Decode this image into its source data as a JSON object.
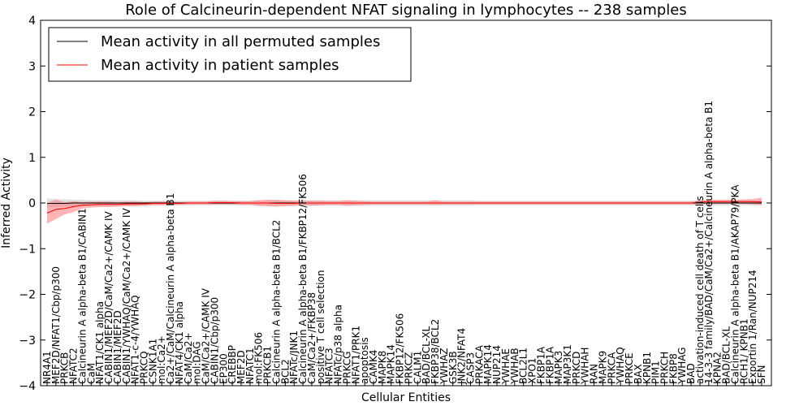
{
  "chart_data": {
    "type": "line",
    "title": "Role of Calcineurin-dependent NFAT signaling in lymphocytes -- 238 samples",
    "xlabel": "Cellular Entities",
    "ylabel": "Inferred Activity",
    "ylim": [
      -4,
      4
    ],
    "yticks": [
      "4",
      "3",
      "2",
      "1",
      "0",
      "−1",
      "−2",
      "−3",
      "−4"
    ],
    "legend": {
      "placement": "top-left",
      "entries": [
        {
          "label": "Mean activity in all permuted samples",
          "color": "#000000"
        },
        {
          "label": "Mean activity in patient samples",
          "color": "#ff0000"
        }
      ]
    },
    "categories": [
      "NR4A1",
      "MEF2D/NFAT1/Cbp/p300",
      "PRKCB",
      "NFATC2",
      "Calcineurin A alpha-beta B1/CABIN1",
      "CaM",
      "NFAT1/CK1 alpha",
      "CABIN1/MEF2D/CaM/Ca2+/CAMK IV",
      "CABIN1/MEF2D",
      "CABIN1/YWHAQ/CaM/Ca2+/CAMK IV",
      "NFAT1-c-4/YWHAQ",
      "PRKCQ",
      "CSNK1A1",
      "mol:Ca2+",
      "Ca2+/CaM/Calcineurin A alpha-beta B1",
      "NFAT4/CK1 alpha",
      "CaM/Ca2+",
      "mol:DAG",
      "CaM/Ca2+/CAMK IV",
      "CABIN1/Cbp/p300",
      "EP300",
      "CREBBP",
      "MEF2D",
      "NFATC1",
      "mol:FK506",
      "PRKCB1",
      "Calcineurin A alpha-beta B1/BCL2",
      "BCL2",
      "NFATc/JNK1",
      "Calcineurin A alpha-beta B1/FKBP12/FK506",
      "CaM/Ca2+/FKBP38",
      "positive T cell selection",
      "NFATC3",
      "NFATc/p38 alpha",
      "PRKCG",
      "NFAT1/PRK1",
      "apoptosis",
      "CAMK4",
      "MAPK8",
      "MAPK14",
      "FKBP12/FK506",
      "PRKCZ",
      "CALM1",
      "BAD/BCL-XL",
      "FKBP38/BCL2",
      "YWHAZ",
      "GSK3B",
      "JNK2/NFAT4",
      "CASP3",
      "PRKACA",
      "MAPK14",
      "NUP214",
      "YWHAE",
      "YWHAB",
      "BCL2L1",
      "XPO1",
      "FKBP1A",
      "FKBP1A",
      "MAPK3",
      "MAP3K1",
      "PRKCD",
      "YWHAH",
      "RAN",
      "MAPK9",
      "PRKCA",
      "YWHAQ",
      "PRKCE",
      "BAX",
      "KPNB1",
      "PIM1",
      "PRKCH",
      "FKBP8",
      "YWHAG",
      "BAD",
      "activation-induced cell death of T cells",
      "14-3-3 family/BAD/CaM/Ca2+/Calcineurin A alpha-beta B1",
      "KPNA2",
      "BAD/BCL-XL",
      "Calcineurin A alpha-beta B1/AKAP79/PKA",
      "RCH1/ KPNB1",
      "Exportin 1/Ran/NUP214",
      "SFN"
    ],
    "series": [
      {
        "name": "Mean activity in all permuted samples",
        "color": "#000000",
        "values": [
          -0.01,
          -0.01,
          -0.01,
          0,
          0,
          0,
          0,
          0,
          0,
          0,
          0,
          0,
          0,
          0,
          0,
          0,
          0,
          0,
          0,
          0,
          0,
          0,
          0,
          0,
          0,
          0,
          0,
          0,
          0,
          0,
          0,
          0,
          0,
          0,
          0,
          0,
          0,
          0,
          0,
          0,
          0,
          0,
          0,
          0,
          0,
          0,
          0,
          0,
          0,
          0,
          0,
          0,
          0,
          0,
          0,
          0,
          0,
          0,
          0,
          0,
          0,
          0,
          0,
          0,
          0,
          0,
          0,
          0,
          0,
          0,
          0,
          0,
          0,
          0,
          0,
          0,
          0,
          0,
          0,
          0,
          0,
          0
        ],
        "band_low": [
          -0.1,
          -0.09,
          -0.08,
          -0.07,
          -0.07,
          -0.06,
          -0.06,
          -0.06,
          -0.06,
          -0.06,
          -0.06,
          -0.05,
          -0.05,
          -0.05,
          -0.05,
          -0.05,
          -0.05,
          -0.05,
          -0.05,
          -0.05,
          -0.05,
          -0.05,
          -0.05,
          -0.05,
          -0.06,
          -0.06,
          -0.06,
          -0.06,
          -0.06,
          -0.06,
          -0.06,
          -0.06,
          -0.06,
          -0.06,
          -0.06,
          -0.06,
          -0.06,
          -0.06,
          -0.06,
          -0.06,
          -0.06,
          -0.06,
          -0.06,
          -0.06,
          -0.06,
          -0.06,
          -0.06,
          -0.06,
          -0.06,
          -0.05,
          -0.05,
          -0.05,
          -0.05,
          -0.05,
          -0.05,
          -0.05,
          -0.05,
          -0.05,
          -0.05,
          -0.05,
          -0.05,
          -0.05,
          -0.05,
          -0.05,
          -0.05,
          -0.05,
          -0.05,
          -0.05,
          -0.05,
          -0.05,
          -0.05,
          -0.05,
          -0.05,
          -0.05,
          -0.05,
          -0.05,
          -0.05,
          -0.05,
          -0.05,
          -0.05,
          -0.05,
          -0.06
        ],
        "band_high": [
          0.1,
          0.09,
          0.08,
          0.07,
          0.07,
          0.06,
          0.06,
          0.06,
          0.06,
          0.06,
          0.06,
          0.05,
          0.05,
          0.05,
          0.05,
          0.05,
          0.05,
          0.05,
          0.05,
          0.05,
          0.05,
          0.05,
          0.05,
          0.05,
          0.06,
          0.06,
          0.06,
          0.06,
          0.06,
          0.06,
          0.06,
          0.06,
          0.06,
          0.06,
          0.06,
          0.06,
          0.06,
          0.06,
          0.06,
          0.06,
          0.06,
          0.06,
          0.06,
          0.06,
          0.06,
          0.06,
          0.06,
          0.06,
          0.06,
          0.05,
          0.05,
          0.05,
          0.05,
          0.05,
          0.05,
          0.05,
          0.05,
          0.05,
          0.05,
          0.05,
          0.05,
          0.05,
          0.05,
          0.05,
          0.05,
          0.05,
          0.05,
          0.05,
          0.05,
          0.05,
          0.05,
          0.05,
          0.05,
          0.05,
          0.05,
          0.05,
          0.05,
          0.05,
          0.05,
          0.05,
          0.05,
          0.06
        ]
      },
      {
        "name": "Mean activity in patient samples",
        "color": "#ff0000",
        "values": [
          -0.22,
          -0.14,
          -0.12,
          -0.08,
          -0.05,
          -0.04,
          -0.03,
          -0.03,
          -0.03,
          -0.02,
          -0.02,
          -0.02,
          -0.01,
          -0.01,
          -0.01,
          -0.01,
          0,
          0,
          0,
          0.01,
          0.01,
          0.01,
          0,
          0,
          0,
          0,
          -0.01,
          -0.01,
          -0.01,
          0,
          0,
          0,
          0,
          0,
          0,
          0,
          0,
          0,
          0,
          0,
          0,
          0,
          0,
          0,
          0,
          0,
          0,
          0,
          0,
          0,
          0,
          0,
          0,
          0,
          0,
          0,
          0,
          0,
          0,
          0,
          0,
          0,
          0,
          0,
          0,
          0,
          0,
          0,
          0,
          0,
          0,
          0,
          0,
          0,
          0.02,
          0.03,
          0.03,
          0.03,
          0.03,
          0.03,
          0.03,
          0.02
        ],
        "band_low": [
          -0.45,
          -0.35,
          -0.25,
          -0.2,
          -0.12,
          -0.1,
          -0.09,
          -0.09,
          -0.08,
          -0.07,
          -0.07,
          -0.06,
          -0.05,
          -0.05,
          -0.05,
          -0.04,
          -0.03,
          -0.03,
          -0.03,
          -0.03,
          -0.03,
          -0.03,
          -0.04,
          -0.04,
          -0.06,
          -0.07,
          -0.08,
          -0.07,
          -0.06,
          -0.05,
          -0.06,
          -0.05,
          -0.04,
          -0.04,
          -0.06,
          -0.05,
          -0.04,
          -0.03,
          -0.03,
          -0.03,
          -0.03,
          -0.03,
          -0.03,
          -0.03,
          -0.04,
          -0.03,
          -0.03,
          -0.03,
          -0.03,
          -0.03,
          -0.03,
          -0.03,
          -0.03,
          -0.03,
          -0.03,
          -0.03,
          -0.03,
          -0.03,
          -0.03,
          -0.03,
          -0.03,
          -0.03,
          -0.03,
          -0.03,
          -0.03,
          -0.03,
          -0.03,
          -0.03,
          -0.03,
          -0.03,
          -0.03,
          -0.03,
          -0.03,
          -0.03,
          -0.02,
          -0.02,
          -0.02,
          -0.02,
          -0.02,
          -0.02,
          -0.03,
          -0.04
        ],
        "band_high": [
          0,
          0.07,
          0.02,
          0.04,
          0.02,
          0.03,
          0.03,
          0.03,
          0.02,
          0.03,
          0.03,
          0.02,
          0.03,
          0.03,
          0.03,
          0.02,
          0.03,
          0.03,
          0.03,
          0.05,
          0.05,
          0.04,
          0.04,
          0.04,
          0.06,
          0.07,
          0.07,
          0.06,
          0.05,
          0.05,
          0.05,
          0.05,
          0.04,
          0.04,
          0.06,
          0.05,
          0.04,
          0.03,
          0.03,
          0.03,
          0.03,
          0.03,
          0.03,
          0.03,
          0.06,
          0.03,
          0.03,
          0.03,
          0.03,
          0.03,
          0.03,
          0.03,
          0.03,
          0.03,
          0.03,
          0.03,
          0.03,
          0.03,
          0.03,
          0.03,
          0.03,
          0.03,
          0.03,
          0.03,
          0.03,
          0.03,
          0.03,
          0.03,
          0.03,
          0.03,
          0.03,
          0.03,
          0.03,
          0.03,
          0.06,
          0.07,
          0.07,
          0.07,
          0.07,
          0.08,
          0.09,
          0.12
        ]
      }
    ]
  }
}
